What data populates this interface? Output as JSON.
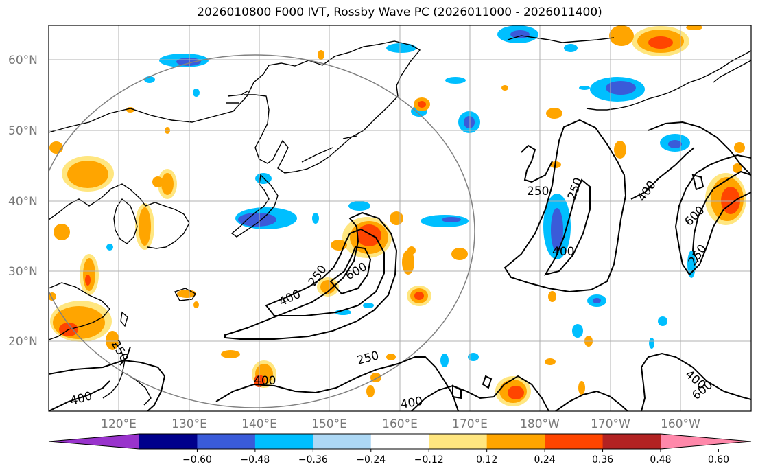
{
  "title": "2026010800 F000 IVT, Rossby Wave PC (2026011000 - 2026011400)",
  "lat_labels": [
    "60°N",
    "50°N",
    "40°N",
    "30°N",
    "20°N"
  ],
  "lon_labels": [
    "120°E",
    "130°E",
    "140°E",
    "150°E",
    "160°E",
    "170°E",
    "180°W",
    "170°W",
    "160°W"
  ],
  "contour_labels": [
    "250",
    "250",
    "400",
    "600",
    "600",
    "400",
    "250",
    "400",
    "250",
    "400",
    "250",
    "400",
    "400",
    "400",
    "600",
    "250",
    "400",
    "400",
    "250"
  ],
  "colorbar": {
    "ticks": [
      "−0.60",
      "−0.48",
      "−0.36",
      "−0.24",
      "−0.12",
      "0.12",
      "0.24",
      "0.36",
      "0.48",
      "0.60"
    ],
    "colors": [
      "#9933cc",
      "#00008b",
      "#3a5bd9",
      "#00bfff",
      "#add8f5",
      "#ffffff",
      "#ffe680",
      "#ffa500",
      "#ff4500",
      "#b22222",
      "#ff88aa"
    ]
  }
}
